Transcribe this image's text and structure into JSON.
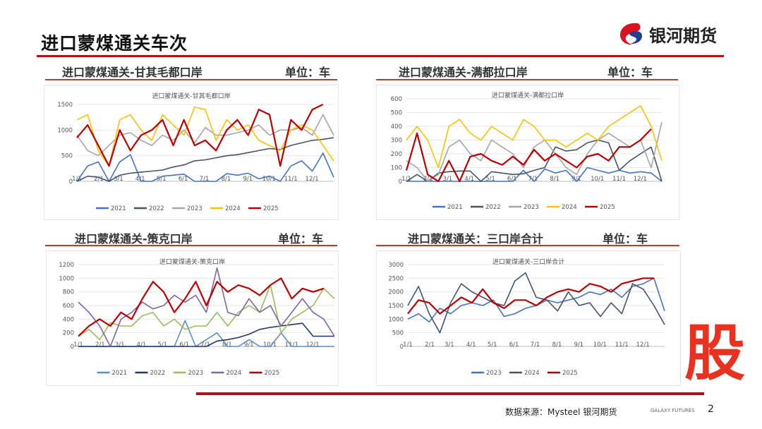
{
  "header": {
    "title": "进口蒙煤通关车次",
    "logo_text": "银河期货"
  },
  "panels": [
    {
      "heading": "进口蒙煤通关-甘其毛都口岸",
      "unit": "单位：车"
    },
    {
      "heading": "进口蒙煤通关-满都拉口岸",
      "unit": "单位：车"
    },
    {
      "heading": "进口蒙煤通关-策克口岸",
      "unit": "单位：车"
    },
    {
      "heading": "进口蒙煤通关：三口岸合计",
      "unit": "单位：车"
    }
  ],
  "footer": {
    "source": "数据来源：Mysteel 银河期货",
    "brand": "GALAXY FUTURES",
    "page": "2",
    "watermark": "股"
  },
  "chart_data": [
    {
      "type": "line",
      "title": "进口蒙煤通关-甘其毛都口岸",
      "xlabel": "",
      "ylabel": "",
      "ylim": [
        0,
        1500
      ],
      "yticks": [
        0,
        500,
        1000,
        1500
      ],
      "xticks": [
        "1/1",
        "2/1",
        "3/1",
        "4/1",
        "5/1",
        "6/1",
        "7/1",
        "8/1",
        "9/1",
        "10/1",
        "11/1",
        "12/1"
      ],
      "x_note": "semi-monthly samples from 1/1 to 12/31",
      "grid": true,
      "legend": "bottom",
      "series": [
        {
          "name": "2021",
          "color": "#4472C4",
          "values": [
            0,
            300,
            380,
            0,
            380,
            520,
            0,
            0,
            100,
            120,
            140,
            0,
            0,
            0,
            150,
            120,
            160,
            50,
            100,
            0,
            300,
            400,
            200,
            550,
            80
          ]
        },
        {
          "name": "2022",
          "color": "#44546A",
          "values": [
            0,
            100,
            80,
            0,
            120,
            160,
            180,
            200,
            220,
            280,
            320,
            400,
            420,
            460,
            500,
            520,
            560,
            600,
            640,
            620,
            700,
            750,
            800,
            820,
            850
          ]
        },
        {
          "name": "2023",
          "color": "#A5A5A5",
          "values": [
            900,
            600,
            500,
            700,
            900,
            950,
            800,
            700,
            900,
            800,
            1000,
            750,
            1050,
            900,
            900,
            950,
            1000,
            1100,
            900,
            1000,
            1000,
            1050,
            900,
            1300,
            900
          ]
        },
        {
          "name": "2024",
          "color": "#FFC000",
          "values": [
            1200,
            1300,
            600,
            300,
            1200,
            1300,
            1000,
            800,
            1300,
            1100,
            900,
            1450,
            1400,
            800,
            1200,
            1000,
            1100,
            800,
            700,
            600,
            1000,
            1100,
            1000,
            700,
            400
          ]
        },
        {
          "name": "2025",
          "color": "#C00000",
          "values": [
            850,
            1100,
            700,
            300,
            1000,
            600,
            900,
            1000,
            1200,
            700,
            1200,
            700,
            800,
            600,
            1000,
            1200,
            900,
            1400,
            1300,
            300,
            1200,
            1000,
            1400,
            1500
          ]
        }
      ]
    },
    {
      "type": "line",
      "title": "进口蒙煤通关-满都拉口岸",
      "xlabel": "",
      "ylabel": "",
      "ylim": [
        0,
        600
      ],
      "yticks": [
        0,
        100,
        200,
        300,
        400,
        500,
        600
      ],
      "xticks": [
        "1/1",
        "2/1",
        "3/1",
        "4/1",
        "5/1",
        "6/1",
        "7/1",
        "8/1",
        "9/1",
        "10/1",
        "11/1",
        "12/1"
      ],
      "grid": true,
      "legend": "bottom",
      "series": [
        {
          "name": "2021",
          "color": "#4472C4",
          "values": [
            0,
            0,
            0,
            0,
            0,
            0,
            0,
            0,
            0,
            0,
            0,
            80,
            0,
            90,
            60,
            80,
            0,
            100,
            80,
            60,
            80,
            60,
            70,
            60,
            0
          ]
        },
        {
          "name": "2022",
          "color": "#44546A",
          "values": [
            0,
            50,
            0,
            60,
            70,
            75,
            75,
            0,
            70,
            60,
            50,
            55,
            80,
            100,
            250,
            220,
            230,
            280,
            300,
            280,
            80,
            150,
            200,
            250,
            0
          ]
        },
        {
          "name": "2023",
          "color": "#A5A5A5",
          "values": [
            150,
            100,
            0,
            50,
            250,
            300,
            200,
            150,
            300,
            250,
            200,
            100,
            250,
            300,
            200,
            100,
            50,
            200,
            300,
            350,
            300,
            250,
            300,
            100,
            430
          ]
        },
        {
          "name": "2024",
          "color": "#FFC000",
          "values": [
            300,
            400,
            300,
            100,
            400,
            450,
            350,
            300,
            400,
            350,
            300,
            450,
            400,
            300,
            300,
            250,
            300,
            350,
            300,
            400,
            450,
            500,
            550,
            400,
            150
          ]
        },
        {
          "name": "2025",
          "color": "#C00000",
          "values": [
            80,
            350,
            50,
            0,
            150,
            0,
            180,
            200,
            150,
            120,
            180,
            120,
            230,
            150,
            200,
            150,
            100,
            180,
            200,
            150,
            250,
            250,
            300,
            380
          ]
        }
      ]
    },
    {
      "type": "line",
      "title": "进口蒙煤通关-策克口岸",
      "xlabel": "",
      "ylabel": "",
      "ylim": [
        0,
        1200
      ],
      "yticks": [
        0,
        200,
        400,
        600,
        800,
        1000,
        1200
      ],
      "xticks": [
        "1/1",
        "2/1",
        "3/1",
        "4/1",
        "5/1",
        "6/1",
        "7/1",
        "8/1",
        "9/1",
        "10/1",
        "11/1",
        "12/1"
      ],
      "grid": true,
      "legend": "bottom",
      "series": [
        {
          "name": "2021",
          "color": "#5B8FC9",
          "values": [
            0,
            0,
            0,
            0,
            0,
            0,
            0,
            0,
            0,
            0,
            380,
            0,
            100,
            200,
            0,
            0,
            100,
            0,
            0,
            200,
            0,
            0,
            0,
            0,
            0
          ]
        },
        {
          "name": "2022",
          "color": "#1F3864",
          "values": [
            0,
            0,
            0,
            0,
            0,
            0,
            0,
            0,
            0,
            0,
            0,
            0,
            0,
            80,
            100,
            130,
            180,
            250,
            280,
            300,
            320,
            340,
            150,
            150,
            150
          ]
        },
        {
          "name": "2023",
          "color": "#9BBB59",
          "values": [
            150,
            250,
            100,
            350,
            300,
            300,
            450,
            500,
            300,
            400,
            250,
            300,
            300,
            500,
            300,
            500,
            600,
            500,
            900,
            200,
            400,
            500,
            600,
            850,
            700
          ]
        },
        {
          "name": "2024",
          "color": "#8064A2",
          "values": [
            650,
            500,
            300,
            0,
            400,
            500,
            650,
            550,
            600,
            750,
            650,
            750,
            500,
            1150,
            500,
            450,
            700,
            500,
            600,
            300,
            500,
            700,
            500,
            400,
            150
          ]
        },
        {
          "name": "2025",
          "color": "#C00000",
          "values": [
            150,
            300,
            400,
            300,
            500,
            400,
            700,
            950,
            800,
            500,
            700,
            950,
            600,
            950,
            800,
            900,
            850,
            750,
            900,
            1000,
            700,
            850,
            800,
            850
          ]
        }
      ]
    },
    {
      "type": "line",
      "title": "进口蒙煤通关-三口岸合计",
      "xlabel": "",
      "ylabel": "",
      "ylim": [
        0,
        3000
      ],
      "yticks": [
        0,
        500,
        1000,
        1500,
        2000,
        2500,
        3000
      ],
      "xticks": [
        "1/1",
        "2/1",
        "3/1",
        "4/1",
        "5/1",
        "6/1",
        "7/1",
        "8/1",
        "9/1",
        "10/1",
        "11/1",
        "12/1"
      ],
      "grid": true,
      "legend": "bottom",
      "series": [
        {
          "name": "2023",
          "color": "#4472C4",
          "values": [
            1000,
            1200,
            900,
            1400,
            1200,
            1500,
            1600,
            1500,
            1700,
            1100,
            1200,
            1400,
            1500,
            1700,
            1600,
            1700,
            1800,
            2000,
            1900,
            2100,
            1800,
            2200,
            2300,
            2500,
            1300
          ]
        },
        {
          "name": "2024",
          "color": "#44546A",
          "values": [
            1500,
            2200,
            1200,
            500,
            1600,
            2300,
            2000,
            1800,
            1600,
            1500,
            2400,
            2700,
            1800,
            1700,
            1300,
            2000,
            1500,
            1600,
            1100,
            1600,
            1200,
            2300,
            2100,
            1500,
            800
          ]
        },
        {
          "name": "2025",
          "color": "#C00000",
          "values": [
            1200,
            1700,
            1600,
            1200,
            1500,
            1800,
            1600,
            2100,
            1600,
            1400,
            1700,
            1700,
            1500,
            1800,
            2000,
            2100,
            2000,
            2300,
            2200,
            2000,
            2300,
            2400,
            2500,
            2500
          ]
        }
      ]
    }
  ]
}
